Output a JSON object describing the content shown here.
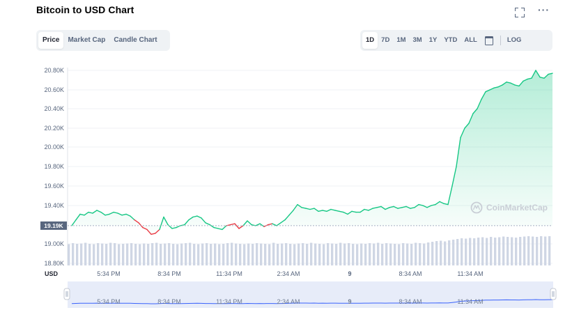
{
  "header": {
    "title": "Bitcoin to USD Chart"
  },
  "icons": {
    "expand": "expand-icon",
    "more": "more-dots-icon",
    "calendar": "calendar-icon",
    "watermark_logo": "coinmarketcap-logo-icon"
  },
  "more_label": "···",
  "tabs_left": [
    {
      "label": "Price",
      "active": true
    },
    {
      "label": "Market Cap",
      "active": false
    },
    {
      "label": "Candle Chart",
      "active": false
    }
  ],
  "tabs_right": [
    {
      "label": "1D",
      "active": true
    },
    {
      "label": "7D",
      "active": false
    },
    {
      "label": "1M",
      "active": false
    },
    {
      "label": "3M",
      "active": false
    },
    {
      "label": "1Y",
      "active": false
    },
    {
      "label": "YTD",
      "active": false
    },
    {
      "label": "ALL",
      "active": false
    }
  ],
  "log_label": "LOG",
  "colors": {
    "up": "#16c784",
    "down": "#ea3943",
    "volume": "#cfd6e4",
    "navigator_line": "#3861fb",
    "navigator_bg": "#e7ecf9"
  },
  "chart_data": {
    "type": "line",
    "x_tick_labels": [
      "5:34 PM",
      "8:34 PM",
      "11:34 PM",
      "2:34 AM",
      "9",
      "8:34 AM",
      "11:34 AM"
    ],
    "y_tick_labels": [
      "20.80K",
      "20.60K",
      "20.40K",
      "20.20K",
      "20.00K",
      "19.80K",
      "19.60K",
      "19.40K",
      "19.00K",
      "18.80K"
    ],
    "ylim": [
      18800,
      20850
    ],
    "reference_value": 19190,
    "reference_label": "19.19K",
    "xlabel": "USD",
    "watermark": "CoinMarketCap",
    "series": [
      {
        "values": [
          19190,
          19250,
          19310,
          19300,
          19330,
          19320,
          19350,
          19330,
          19300,
          19310,
          19330,
          19320,
          19300,
          19310,
          19290,
          19250,
          19220,
          19170,
          19150,
          19100,
          19110,
          19150,
          19280,
          19200,
          19160,
          19170,
          19190,
          19200,
          19250,
          19280,
          19290,
          19270,
          19220,
          19200,
          19170,
          19160,
          19150,
          19190,
          19200,
          19210,
          19160,
          19190,
          19240,
          19200,
          19190,
          19210,
          19180,
          19200,
          19210,
          19190,
          19220,
          19250,
          19300,
          19350,
          19410,
          19380,
          19370,
          19360,
          19370,
          19340,
          19350,
          19340,
          19360,
          19350,
          19340,
          19330,
          19310,
          19340,
          19330,
          19330,
          19360,
          19350,
          19370,
          19380,
          19390,
          19360,
          19380,
          19390,
          19370,
          19380,
          19390,
          19370,
          19380,
          19410,
          19400,
          19380,
          19400,
          19410,
          19440,
          19420,
          19410,
          19600,
          19800,
          20100,
          20200,
          20250,
          20350,
          20400,
          20500,
          20580,
          20600,
          20620,
          20630,
          20650,
          20680,
          20670,
          20650,
          20640,
          20690,
          20710,
          20720,
          20800,
          20730,
          20720,
          20760,
          20770
        ],
        "down_ranges": [
          [
            15,
            21
          ],
          [
            37,
            41
          ],
          [
            46,
            48
          ]
        ]
      }
    ],
    "volume": [
      5,
      8,
      6,
      7,
      9,
      6,
      5,
      8,
      7,
      6,
      9,
      8,
      5,
      6,
      7,
      8,
      6,
      5,
      7,
      6,
      8,
      9,
      6,
      7,
      8,
      6,
      5,
      7,
      8,
      9,
      6,
      5,
      7,
      8,
      6,
      7,
      5,
      6,
      8,
      9,
      7,
      6,
      5,
      7,
      6,
      8,
      7,
      6,
      5,
      9,
      6,
      7,
      8,
      6,
      5,
      7,
      8,
      6,
      9,
      7,
      6,
      5,
      8,
      7,
      6,
      9,
      7,
      8,
      6,
      5,
      7,
      6,
      8,
      7,
      9,
      6,
      8,
      7,
      6,
      5,
      8,
      7,
      6,
      9,
      8,
      7,
      10,
      12,
      14,
      15,
      13,
      16,
      18,
      20,
      22,
      21,
      23,
      22,
      24,
      25,
      23,
      26,
      24,
      25,
      27,
      26,
      25,
      24,
      26,
      27,
      28,
      27,
      26,
      28,
      27,
      28
    ]
  }
}
